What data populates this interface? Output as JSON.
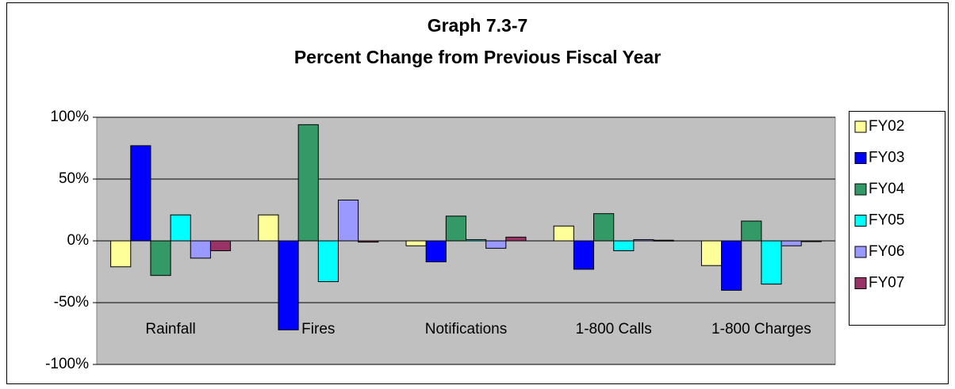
{
  "chart_data": {
    "type": "bar",
    "title": "Graph 7.3-7",
    "subtitle": "Percent Change from Previous Fiscal Year",
    "categories": [
      "Rainfall",
      "Fires",
      "Notifications",
      "1-800 Calls",
      "1-800 Charges"
    ],
    "series": [
      {
        "name": "FY02",
        "color": "#ffff99",
        "values": [
          -21,
          21,
          -4,
          12,
          -20
        ]
      },
      {
        "name": "FY03",
        "color": "#0000ff",
        "values": [
          77,
          -72,
          -17,
          -23,
          -40
        ]
      },
      {
        "name": "FY04",
        "color": "#339966",
        "values": [
          -28,
          94,
          20,
          22,
          16
        ]
      },
      {
        "name": "FY05",
        "color": "#00ffff",
        "values": [
          21,
          -33,
          1,
          -8,
          -35
        ]
      },
      {
        "name": "FY06",
        "color": "#9999ff",
        "values": [
          -14,
          33,
          -6,
          1,
          -4
        ]
      },
      {
        "name": "FY07",
        "color": "#993366",
        "values": [
          -8,
          -1,
          3,
          0.5,
          -0.5
        ]
      }
    ],
    "ylim": [
      -100,
      100
    ],
    "yticks": [
      {
        "value": -100,
        "label": "-100%"
      },
      {
        "value": -50,
        "label": "-50%"
      },
      {
        "value": 0,
        "label": "0%"
      },
      {
        "value": 50,
        "label": "50%"
      },
      {
        "value": 100,
        "label": "100%"
      }
    ],
    "grid": true,
    "plot_color": "#c0c0c0",
    "legend": "right"
  }
}
